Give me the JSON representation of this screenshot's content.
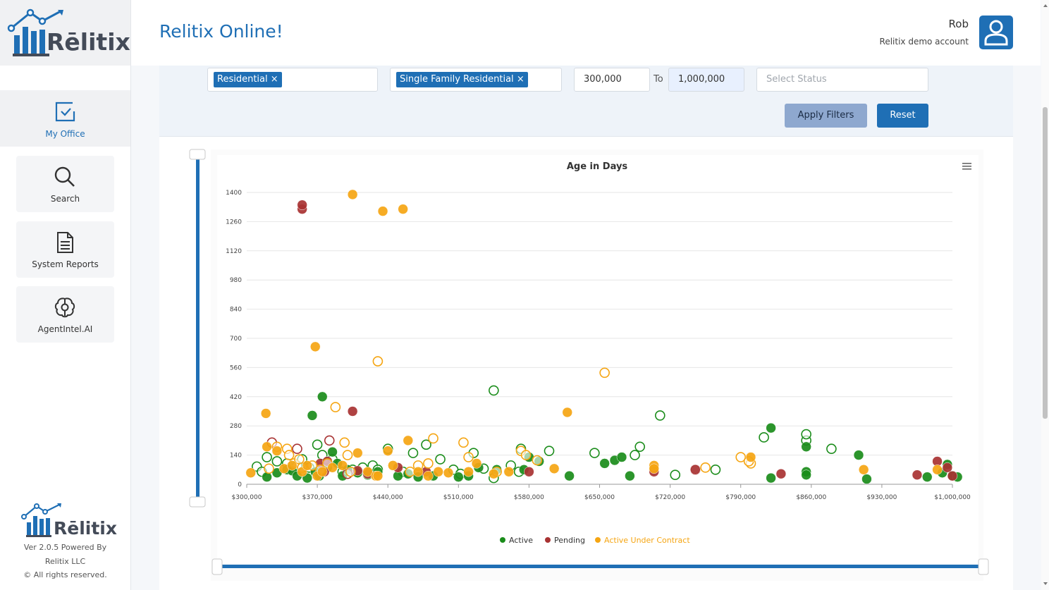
{
  "brand": {
    "logo_text": "Rēlitix"
  },
  "header": {
    "title": "Relitix Online!",
    "user_name": "Rob",
    "account": "Relitix demo account"
  },
  "nav": [
    {
      "label": "My Office",
      "icon": "checkbox-icon",
      "active": true
    },
    {
      "label": "Search",
      "icon": "search-icon"
    },
    {
      "label": "System Reports",
      "icon": "document-icon"
    },
    {
      "label": "AgentIntel.AI",
      "icon": "brain-icon"
    }
  ],
  "footer": {
    "version": "Ver 2.0.5 Powered By",
    "company": "Relitix LLC",
    "rights": "© All rights reserved."
  },
  "filters": {
    "property_type": "Residential",
    "property_subtype": "Single Family Residential",
    "price_min": "300,000",
    "to_label": "To",
    "price_max": "1,000,000",
    "status_placeholder": "Select Status",
    "apply_label": "Apply Filters",
    "reset_label": "Reset"
  },
  "colors": {
    "primary": "#1f6fb5",
    "active": "#1a8c1a",
    "pending": "#a83232",
    "auc": "#f5a512"
  },
  "chart_data": {
    "type": "scatter",
    "title": "Age in Days",
    "xlim": [
      300000,
      1000000
    ],
    "ylim": [
      0,
      1400
    ],
    "x_ticks": [
      300000,
      370000,
      440000,
      510000,
      580000,
      650000,
      720000,
      790000,
      860000,
      930000,
      1000000
    ],
    "x_tick_labels": [
      "$300,000",
      "$370,000",
      "$440,000",
      "$510,000",
      "$580,000",
      "$650,000",
      "$720,000",
      "$790,000",
      "$860,000",
      "$930,000",
      "$1,000,000"
    ],
    "y_ticks": [
      0,
      140,
      280,
      420,
      560,
      700,
      840,
      980,
      1120,
      1260,
      1400
    ],
    "legend_position": "bottom",
    "legend": [
      "Active",
      "Pending",
      "Active Under Contract"
    ],
    "series": [
      {
        "name": "Active",
        "filled": [
          [
            320000,
            35
          ],
          [
            330000,
            55
          ],
          [
            340000,
            70
          ],
          [
            345000,
            65
          ],
          [
            350000,
            40
          ],
          [
            360000,
            30
          ],
          [
            365000,
            330
          ],
          [
            368000,
            60
          ],
          [
            372000,
            40
          ],
          [
            375000,
            420
          ],
          [
            380000,
            80
          ],
          [
            385000,
            155
          ],
          [
            390000,
            100
          ],
          [
            395000,
            40
          ],
          [
            400000,
            70
          ],
          [
            410000,
            55
          ],
          [
            420000,
            45
          ],
          [
            430000,
            60
          ],
          [
            450000,
            40
          ],
          [
            460000,
            50
          ],
          [
            470000,
            35
          ],
          [
            485000,
            40
          ],
          [
            510000,
            35
          ],
          [
            520000,
            40
          ],
          [
            530000,
            80
          ],
          [
            548000,
            70
          ],
          [
            575000,
            70
          ],
          [
            580000,
            130
          ],
          [
            590000,
            110
          ],
          [
            620000,
            40
          ],
          [
            655000,
            100
          ],
          [
            665000,
            115
          ],
          [
            672000,
            130
          ],
          [
            680000,
            40
          ],
          [
            820000,
            270
          ],
          [
            820000,
            30
          ],
          [
            855000,
            180
          ],
          [
            855000,
            60
          ],
          [
            855000,
            45
          ],
          [
            907000,
            140
          ],
          [
            915000,
            25
          ],
          [
            975000,
            35
          ],
          [
            990000,
            55
          ],
          [
            995000,
            95
          ],
          [
            1000000,
            40
          ],
          [
            1005000,
            35
          ]
        ],
        "open": [
          [
            310000,
            85
          ],
          [
            315000,
            60
          ],
          [
            320000,
            130
          ],
          [
            330000,
            110
          ],
          [
            340000,
            100
          ],
          [
            350000,
            90
          ],
          [
            355000,
            120
          ],
          [
            362000,
            80
          ],
          [
            370000,
            190
          ],
          [
            375000,
            140
          ],
          [
            385000,
            120
          ],
          [
            395000,
            60
          ],
          [
            405000,
            70
          ],
          [
            415000,
            80
          ],
          [
            425000,
            90
          ],
          [
            430000,
            70
          ],
          [
            440000,
            170
          ],
          [
            455000,
            60
          ],
          [
            465000,
            150
          ],
          [
            478000,
            190
          ],
          [
            492000,
            120
          ],
          [
            505000,
            70
          ],
          [
            512000,
            50
          ],
          [
            525000,
            150
          ],
          [
            535000,
            75
          ],
          [
            545000,
            30
          ],
          [
            545000,
            450
          ],
          [
            562000,
            90
          ],
          [
            570000,
            60
          ],
          [
            572000,
            170
          ],
          [
            600000,
            160
          ],
          [
            645000,
            150
          ],
          [
            685000,
            140
          ],
          [
            690000,
            180
          ],
          [
            710000,
            330
          ],
          [
            725000,
            45
          ],
          [
            765000,
            70
          ],
          [
            813000,
            225
          ],
          [
            855000,
            210
          ],
          [
            855000,
            240
          ],
          [
            880000,
            170
          ]
        ]
      },
      {
        "name": "Pending",
        "filled": [
          [
            355000,
            1320
          ],
          [
            355000,
            1340
          ],
          [
            373000,
            100
          ],
          [
            377000,
            60
          ],
          [
            380000,
            110
          ],
          [
            405000,
            350
          ],
          [
            410000,
            65
          ],
          [
            420000,
            50
          ],
          [
            450000,
            80
          ],
          [
            478000,
            60
          ],
          [
            580000,
            60
          ],
          [
            704000,
            60
          ],
          [
            745000,
            70
          ],
          [
            830000,
            50
          ],
          [
            965000,
            45
          ],
          [
            985000,
            110
          ],
          [
            995000,
            80
          ],
          [
            1000000,
            40
          ]
        ],
        "open": [
          [
            325000,
            200
          ],
          [
            350000,
            170
          ],
          [
            382000,
            210
          ],
          [
            400000,
            50
          ],
          [
            745000,
            70
          ]
        ]
      },
      {
        "name": "Active Under Contract",
        "filled": [
          [
            304000,
            55
          ],
          [
            319000,
            340
          ],
          [
            320000,
            180
          ],
          [
            330000,
            160
          ],
          [
            337000,
            75
          ],
          [
            345000,
            90
          ],
          [
            355000,
            60
          ],
          [
            360000,
            90
          ],
          [
            368000,
            660
          ],
          [
            370000,
            40
          ],
          [
            375000,
            60
          ],
          [
            385000,
            80
          ],
          [
            395000,
            90
          ],
          [
            405000,
            1390
          ],
          [
            410000,
            150
          ],
          [
            420000,
            60
          ],
          [
            428000,
            40
          ],
          [
            430000,
            40
          ],
          [
            435000,
            1310
          ],
          [
            440000,
            160
          ],
          [
            445000,
            90
          ],
          [
            455000,
            1320
          ],
          [
            460000,
            210
          ],
          [
            470000,
            60
          ],
          [
            480000,
            40
          ],
          [
            490000,
            60
          ],
          [
            500000,
            55
          ],
          [
            520000,
            60
          ],
          [
            528000,
            100
          ],
          [
            545000,
            50
          ],
          [
            560000,
            60
          ],
          [
            605000,
            75
          ],
          [
            618000,
            345
          ],
          [
            704000,
            90
          ],
          [
            704000,
            75
          ],
          [
            800000,
            130
          ],
          [
            912000,
            70
          ],
          [
            985000,
            70
          ]
        ],
        "open": [
          [
            322000,
            75
          ],
          [
            330000,
            180
          ],
          [
            340000,
            170
          ],
          [
            342000,
            140
          ],
          [
            347000,
            100
          ],
          [
            352000,
            120
          ],
          [
            355000,
            80
          ],
          [
            365000,
            90
          ],
          [
            373000,
            70
          ],
          [
            380000,
            100
          ],
          [
            388000,
            370
          ],
          [
            397000,
            200
          ],
          [
            400000,
            140
          ],
          [
            403000,
            60
          ],
          [
            430000,
            590
          ],
          [
            462000,
            60
          ],
          [
            470000,
            90
          ],
          [
            480000,
            100
          ],
          [
            485000,
            220
          ],
          [
            515000,
            200
          ],
          [
            520000,
            130
          ],
          [
            548000,
            60
          ],
          [
            572000,
            160
          ],
          [
            577000,
            140
          ],
          [
            588000,
            115
          ],
          [
            655000,
            535
          ],
          [
            755000,
            80
          ],
          [
            790000,
            130
          ],
          [
            800000,
            100
          ],
          [
            798000,
            110
          ]
        ]
      }
    ]
  }
}
